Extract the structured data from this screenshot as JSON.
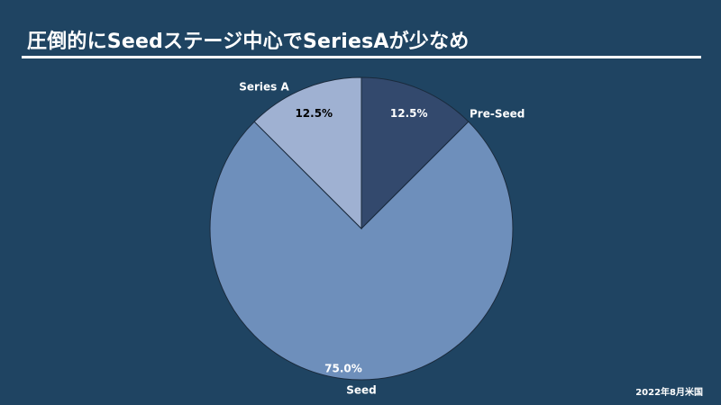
{
  "slide": {
    "title": "圧倒的にSeedステージ中心でSeriesAが少なめ",
    "footnote": "2022年8月米国"
  },
  "chart_data": {
    "type": "pie",
    "title": "",
    "start_angle_deg": 0,
    "direction": "clockwise",
    "slices": [
      {
        "name": "Pre-Seed",
        "value": 12.5,
        "label": "12.5%",
        "color": "#33496d"
      },
      {
        "name": "Seed",
        "value": 75.0,
        "label": "75.0%",
        "color": "#6e8fbb"
      },
      {
        "name": "Series A",
        "value": 12.5,
        "label": "12.5%",
        "color": "#9fb1d2"
      }
    ],
    "legend": "none"
  }
}
